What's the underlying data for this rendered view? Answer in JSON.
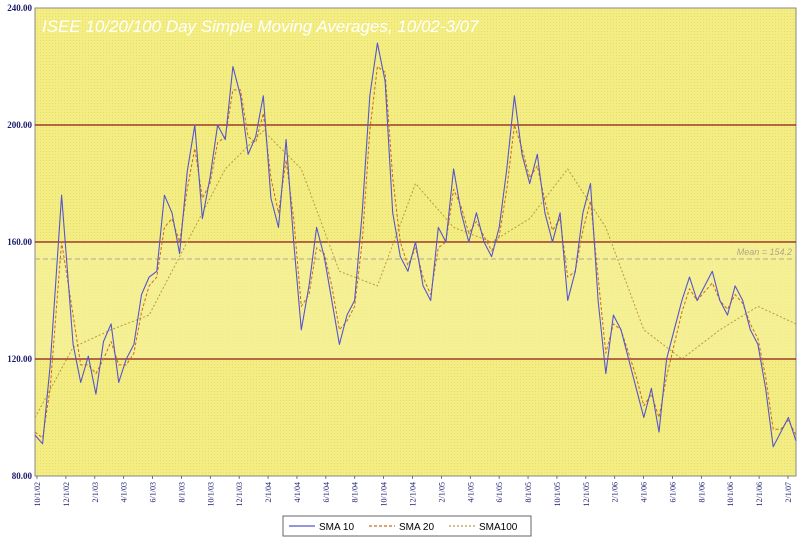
{
  "colors": {
    "plot_bg": "#f5f08a",
    "band_bg": "#f7f2a0",
    "sma10": "#5555cc",
    "sma20": "#cc6a22",
    "sma100": "#b89a3c",
    "ref_line": "#8b1a1a",
    "mean_line": "#b0a68a",
    "axis_text": "#1a1a6e"
  },
  "chart_data": {
    "type": "line",
    "title": "ISEE 10/20/100 Day Simple Moving Averages, 10/02-3/07",
    "xlabel": "",
    "ylabel": "",
    "ylim": [
      80,
      240
    ],
    "xlim": [
      0,
      1
    ],
    "yticks": [
      "80.00",
      "120.00",
      "160.00",
      "200.00",
      "240.00"
    ],
    "ytick_values": [
      80,
      120,
      160,
      200,
      240
    ],
    "xticks": [
      "10/1/02",
      "12/1/02",
      "2/1/03",
      "4/1/03",
      "6/1/03",
      "8/1/03",
      "10/1/03",
      "12/1/03",
      "2/1/04",
      "4/1/04",
      "6/1/04",
      "8/1/04",
      "10/1/04",
      "12/1/04",
      "2/1/05",
      "4/1/05",
      "6/1/05",
      "8/1/05",
      "10/1/05",
      "12/1/05",
      "2/1/06",
      "4/1/06",
      "6/1/06",
      "8/1/06",
      "10/1/06",
      "12/1/06",
      "2/1/07"
    ],
    "reference_lines": [
      120,
      160,
      200
    ],
    "mean": 154.2,
    "mean_label": "Mean = 154.2",
    "legend_position": "bottom-center",
    "grid": false,
    "series": [
      {
        "name": "SMA 10",
        "x": [
          0,
          0.01,
          0.02,
          0.035,
          0.05,
          0.06,
          0.07,
          0.08,
          0.09,
          0.1,
          0.11,
          0.12,
          0.13,
          0.14,
          0.15,
          0.16,
          0.17,
          0.18,
          0.19,
          0.2,
          0.21,
          0.22,
          0.23,
          0.24,
          0.25,
          0.26,
          0.27,
          0.28,
          0.29,
          0.3,
          0.31,
          0.32,
          0.33,
          0.34,
          0.35,
          0.36,
          0.37,
          0.38,
          0.39,
          0.4,
          0.41,
          0.42,
          0.43,
          0.44,
          0.45,
          0.46,
          0.47,
          0.48,
          0.49,
          0.5,
          0.51,
          0.52,
          0.53,
          0.54,
          0.55,
          0.56,
          0.57,
          0.58,
          0.59,
          0.6,
          0.61,
          0.62,
          0.63,
          0.64,
          0.65,
          0.66,
          0.67,
          0.68,
          0.69,
          0.7,
          0.71,
          0.72,
          0.73,
          0.74,
          0.75,
          0.76,
          0.77,
          0.78,
          0.79,
          0.8,
          0.81,
          0.82,
          0.83,
          0.84,
          0.85,
          0.86,
          0.87,
          0.88,
          0.89,
          0.9,
          0.91,
          0.92,
          0.93,
          0.94,
          0.95,
          0.96,
          0.97,
          0.98,
          0.99,
          1.0
        ],
        "values": [
          94,
          91,
          118,
          176,
          125,
          112,
          121,
          108,
          126,
          132,
          112,
          120,
          125,
          142,
          148,
          150,
          176,
          170,
          156,
          184,
          200,
          168,
          182,
          200,
          195,
          220,
          210,
          190,
          196,
          210,
          175,
          165,
          195,
          160,
          130,
          145,
          165,
          155,
          140,
          125,
          135,
          140,
          170,
          210,
          228,
          215,
          170,
          155,
          150,
          160,
          145,
          140,
          165,
          160,
          185,
          170,
          160,
          170,
          160,
          155,
          165,
          185,
          210,
          190,
          180,
          190,
          170,
          160,
          170,
          140,
          150,
          170,
          180,
          140,
          115,
          135,
          130,
          120,
          110,
          100,
          110,
          95,
          120,
          130,
          140,
          148,
          140,
          145,
          150,
          140,
          135,
          145,
          140,
          130,
          125,
          110,
          90,
          95,
          100,
          92
        ]
      },
      {
        "name": "SMA 20",
        "x": [
          0,
          0.01,
          0.02,
          0.035,
          0.05,
          0.06,
          0.07,
          0.08,
          0.09,
          0.1,
          0.11,
          0.12,
          0.13,
          0.14,
          0.15,
          0.16,
          0.17,
          0.18,
          0.19,
          0.2,
          0.21,
          0.22,
          0.23,
          0.24,
          0.25,
          0.26,
          0.27,
          0.28,
          0.29,
          0.3,
          0.31,
          0.32,
          0.33,
          0.34,
          0.35,
          0.36,
          0.37,
          0.38,
          0.39,
          0.4,
          0.41,
          0.42,
          0.43,
          0.44,
          0.45,
          0.46,
          0.47,
          0.48,
          0.49,
          0.5,
          0.51,
          0.52,
          0.53,
          0.54,
          0.55,
          0.56,
          0.57,
          0.58,
          0.59,
          0.6,
          0.61,
          0.62,
          0.63,
          0.64,
          0.65,
          0.66,
          0.67,
          0.68,
          0.69,
          0.7,
          0.71,
          0.72,
          0.73,
          0.74,
          0.75,
          0.76,
          0.77,
          0.78,
          0.79,
          0.8,
          0.81,
          0.82,
          0.83,
          0.84,
          0.85,
          0.86,
          0.87,
          0.88,
          0.89,
          0.9,
          0.91,
          0.92,
          0.93,
          0.94,
          0.95,
          0.96,
          0.97,
          0.98,
          0.99,
          1.0
        ],
        "values": [
          95,
          93,
          110,
          160,
          135,
          118,
          118,
          115,
          120,
          126,
          118,
          118,
          122,
          136,
          145,
          148,
          165,
          168,
          160,
          178,
          192,
          175,
          180,
          194,
          196,
          212,
          212,
          196,
          194,
          204,
          182,
          170,
          188,
          168,
          138,
          142,
          158,
          156,
          145,
          130,
          133,
          138,
          160,
          198,
          220,
          218,
          182,
          160,
          152,
          158,
          148,
          142,
          158,
          160,
          178,
          172,
          163,
          167,
          162,
          157,
          162,
          178,
          200,
          192,
          182,
          186,
          174,
          164,
          168,
          148,
          150,
          164,
          174,
          148,
          122,
          132,
          130,
          122,
          114,
          104,
          108,
          100,
          114,
          125,
          136,
          144,
          140,
          143,
          146,
          140,
          137,
          142,
          139,
          132,
          127,
          114,
          96,
          96,
          99,
          94
        ]
      },
      {
        "name": "SMA100",
        "x": [
          0,
          0.05,
          0.1,
          0.15,
          0.2,
          0.25,
          0.3,
          0.35,
          0.4,
          0.45,
          0.5,
          0.55,
          0.6,
          0.65,
          0.7,
          0.75,
          0.8,
          0.85,
          0.9,
          0.95,
          1.0
        ],
        "values": [
          100,
          124,
          130,
          135,
          160,
          185,
          198,
          185,
          150,
          145,
          180,
          165,
          160,
          168,
          185,
          165,
          130,
          120,
          130,
          138,
          132
        ]
      }
    ]
  }
}
